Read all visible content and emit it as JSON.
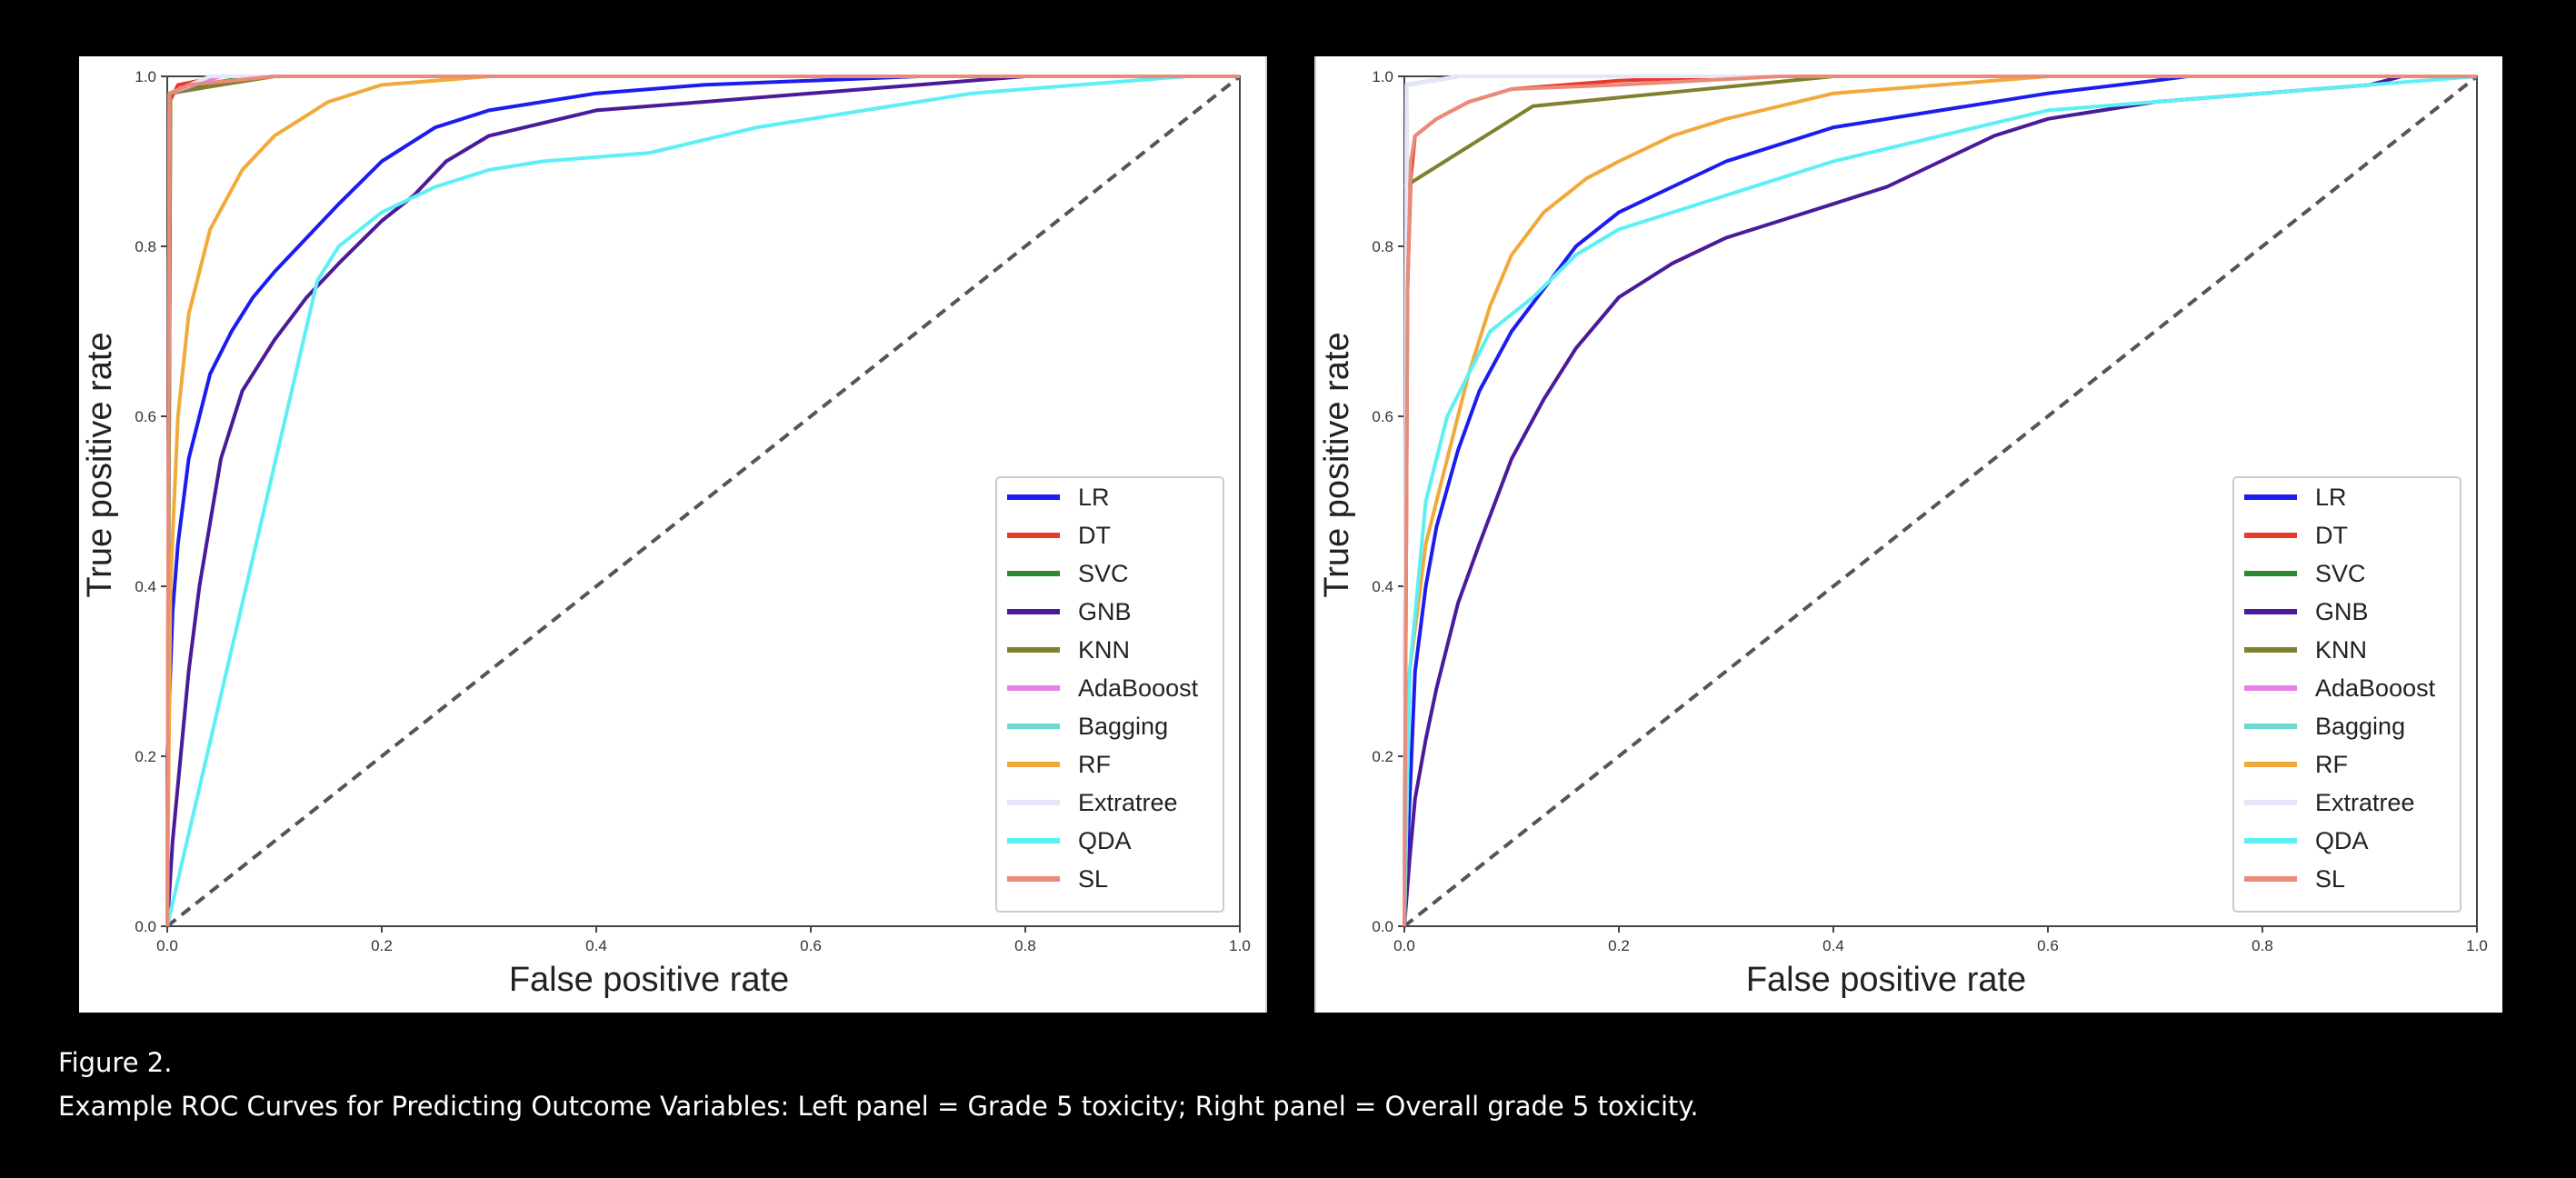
{
  "figure": {
    "label": "Figure 2.",
    "caption": "Example ROC Curves for Predicting Outcome Variables: Left panel = Grade 5 toxicity; Right panel = Overall grade 5 toxicity."
  },
  "chart_data": [
    {
      "type": "line",
      "xlabel": "False positive rate",
      "ylabel": "True positive rate",
      "xlim": [
        0,
        1
      ],
      "ylim": [
        0,
        1
      ],
      "xticks": [
        "0.0",
        "0.2",
        "0.4",
        "0.6",
        "0.8",
        "1.0"
      ],
      "yticks": [
        "0.0",
        "0.2",
        "0.4",
        "0.6",
        "0.8",
        "1.0"
      ],
      "grid": false,
      "legend_position": "bottom-right",
      "diagonal": {
        "style": "dashed",
        "color": "#555555",
        "points": [
          [
            0,
            0
          ],
          [
            1,
            1
          ]
        ]
      },
      "series": [
        {
          "name": "LR",
          "color": "#1c1cf0",
          "points": [
            [
              0,
              0
            ],
            [
              0,
              0.2
            ],
            [
              0.005,
              0.37
            ],
            [
              0.01,
              0.45
            ],
            [
              0.02,
              0.55
            ],
            [
              0.03,
              0.6
            ],
            [
              0.04,
              0.65
            ],
            [
              0.06,
              0.7
            ],
            [
              0.08,
              0.74
            ],
            [
              0.1,
              0.77
            ],
            [
              0.13,
              0.81
            ],
            [
              0.16,
              0.85
            ],
            [
              0.2,
              0.9
            ],
            [
              0.25,
              0.94
            ],
            [
              0.3,
              0.96
            ],
            [
              0.4,
              0.98
            ],
            [
              0.5,
              0.99
            ],
            [
              0.7,
              1.0
            ],
            [
              1,
              1
            ]
          ]
        },
        {
          "name": "DT",
          "color": "#e8392b",
          "points": [
            [
              0,
              0
            ],
            [
              0.002,
              0.97
            ],
            [
              0.01,
              0.99
            ],
            [
              0.05,
              1.0
            ],
            [
              1,
              1
            ]
          ]
        },
        {
          "name": "SVC",
          "color": "#2e8a2e",
          "points": [
            [
              0,
              0
            ],
            [
              0.003,
              0.98
            ],
            [
              0.03,
              0.99
            ],
            [
              0.08,
              1.0
            ],
            [
              1,
              1
            ]
          ]
        },
        {
          "name": "GNB",
          "color": "#4b1a9a",
          "points": [
            [
              0,
              0
            ],
            [
              0.005,
              0.1
            ],
            [
              0.02,
              0.3
            ],
            [
              0.03,
              0.4
            ],
            [
              0.05,
              0.55
            ],
            [
              0.07,
              0.63
            ],
            [
              0.1,
              0.69
            ],
            [
              0.13,
              0.74
            ],
            [
              0.16,
              0.78
            ],
            [
              0.2,
              0.83
            ],
            [
              0.23,
              0.86
            ],
            [
              0.26,
              0.9
            ],
            [
              0.3,
              0.93
            ],
            [
              0.4,
              0.96
            ],
            [
              0.5,
              0.97
            ],
            [
              0.6,
              0.98
            ],
            [
              0.7,
              0.99
            ],
            [
              0.8,
              1.0
            ],
            [
              1,
              1
            ]
          ]
        },
        {
          "name": "KNN",
          "color": "#808030",
          "points": [
            [
              0,
              0
            ],
            [
              0.003,
              0.98
            ],
            [
              0.05,
              0.99
            ],
            [
              0.1,
              1.0
            ],
            [
              1,
              1
            ]
          ]
        },
        {
          "name": "AdaBooost",
          "color": "#e680e8",
          "points": [
            [
              0,
              0
            ],
            [
              0.002,
              0.98
            ],
            [
              0.05,
              1.0
            ],
            [
              1,
              1
            ]
          ]
        },
        {
          "name": "Bagging",
          "color": "#6ad9d0",
          "points": [
            [
              0,
              0
            ],
            [
              0.002,
              0.98
            ],
            [
              0.04,
              1.0
            ],
            [
              1,
              1
            ]
          ]
        },
        {
          "name": "RF",
          "color": "#f2a93b",
          "points": [
            [
              0,
              0
            ],
            [
              0.003,
              0.4
            ],
            [
              0.01,
              0.6
            ],
            [
              0.02,
              0.72
            ],
            [
              0.04,
              0.82
            ],
            [
              0.07,
              0.89
            ],
            [
              0.1,
              0.93
            ],
            [
              0.15,
              0.97
            ],
            [
              0.2,
              0.99
            ],
            [
              0.3,
              1.0
            ],
            [
              1,
              1
            ]
          ]
        },
        {
          "name": "Extratree",
          "color": "#e6e6fa",
          "points": [
            [
              0,
              0
            ],
            [
              0.002,
              0.98
            ],
            [
              0.04,
              1.0
            ],
            [
              1,
              1
            ]
          ]
        },
        {
          "name": "QDA",
          "color": "#5cf0f4",
          "points": [
            [
              0,
              0
            ],
            [
              0.14,
              0.76
            ],
            [
              0.16,
              0.8
            ],
            [
              0.2,
              0.84
            ],
            [
              0.25,
              0.87
            ],
            [
              0.3,
              0.89
            ],
            [
              0.35,
              0.9
            ],
            [
              0.45,
              0.91
            ],
            [
              0.55,
              0.94
            ],
            [
              0.65,
              0.96
            ],
            [
              0.75,
              0.98
            ],
            [
              0.85,
              0.99
            ],
            [
              0.95,
              1.0
            ],
            [
              1,
              1
            ]
          ]
        },
        {
          "name": "SL",
          "color": "#ea8a78",
          "points": [
            [
              0,
              0
            ],
            [
              0.002,
              0.98
            ],
            [
              0.02,
              0.99
            ],
            [
              0.1,
              1.0
            ],
            [
              1,
              1
            ]
          ]
        }
      ]
    },
    {
      "type": "line",
      "xlabel": "False positive rate",
      "ylabel": "True positive rate",
      "xlim": [
        0,
        1
      ],
      "ylim": [
        0,
        1
      ],
      "xticks": [
        "0.0",
        "0.2",
        "0.4",
        "0.6",
        "0.8",
        "1.0"
      ],
      "yticks": [
        "0.0",
        "0.2",
        "0.4",
        "0.6",
        "0.8",
        "1.0"
      ],
      "grid": false,
      "legend_position": "bottom-right",
      "diagonal": {
        "style": "dashed",
        "color": "#555555",
        "points": [
          [
            0,
            0
          ],
          [
            1,
            1
          ]
        ]
      },
      "series": [
        {
          "name": "LR",
          "color": "#1c1cf0",
          "points": [
            [
              0,
              0
            ],
            [
              0.005,
              0.15
            ],
            [
              0.01,
              0.3
            ],
            [
              0.02,
              0.4
            ],
            [
              0.03,
              0.47
            ],
            [
              0.05,
              0.56
            ],
            [
              0.07,
              0.63
            ],
            [
              0.1,
              0.7
            ],
            [
              0.13,
              0.75
            ],
            [
              0.16,
              0.8
            ],
            [
              0.2,
              0.84
            ],
            [
              0.25,
              0.87
            ],
            [
              0.3,
              0.9
            ],
            [
              0.4,
              0.94
            ],
            [
              0.5,
              0.96
            ],
            [
              0.6,
              0.98
            ],
            [
              0.7,
              0.995
            ],
            [
              0.73,
              1.0
            ],
            [
              1,
              1
            ]
          ]
        },
        {
          "name": "DT",
          "color": "#e8392b",
          "points": [
            [
              0,
              0
            ],
            [
              0.003,
              0.75
            ],
            [
              0.006,
              0.88
            ],
            [
              0.01,
              0.93
            ],
            [
              0.03,
              0.95
            ],
            [
              0.06,
              0.97
            ],
            [
              0.1,
              0.985
            ],
            [
              0.2,
              0.995
            ],
            [
              0.3,
              1.0
            ],
            [
              1,
              1
            ]
          ]
        },
        {
          "name": "SVC",
          "color": "#2e8a2e",
          "points": [
            [
              0,
              0
            ],
            [
              0.002,
              0.99
            ],
            [
              0.05,
              1.0
            ],
            [
              1,
              1
            ]
          ]
        },
        {
          "name": "GNB",
          "color": "#4b1a9a",
          "points": [
            [
              0,
              0
            ],
            [
              0.005,
              0.08
            ],
            [
              0.01,
              0.15
            ],
            [
              0.02,
              0.22
            ],
            [
              0.03,
              0.28
            ],
            [
              0.05,
              0.38
            ],
            [
              0.07,
              0.45
            ],
            [
              0.1,
              0.55
            ],
            [
              0.13,
              0.62
            ],
            [
              0.16,
              0.68
            ],
            [
              0.2,
              0.74
            ],
            [
              0.25,
              0.78
            ],
            [
              0.3,
              0.81
            ],
            [
              0.35,
              0.83
            ],
            [
              0.4,
              0.85
            ],
            [
              0.45,
              0.87
            ],
            [
              0.5,
              0.9
            ],
            [
              0.55,
              0.93
            ],
            [
              0.6,
              0.95
            ],
            [
              0.7,
              0.97
            ],
            [
              0.8,
              0.98
            ],
            [
              0.9,
              0.99
            ],
            [
              0.93,
              1.0
            ],
            [
              1,
              1
            ]
          ]
        },
        {
          "name": "KNN",
          "color": "#808030",
          "points": [
            [
              0,
              0.87
            ],
            [
              0.12,
              0.965
            ],
            [
              0.4,
              1.0
            ],
            [
              1,
              1
            ]
          ]
        },
        {
          "name": "AdaBooost",
          "color": "#e680e8",
          "points": [
            [
              0,
              0
            ],
            [
              0.002,
              0.99
            ],
            [
              0.05,
              1.0
            ],
            [
              1,
              1
            ]
          ]
        },
        {
          "name": "Bagging",
          "color": "#6ad9d0",
          "points": [
            [
              0,
              0
            ],
            [
              0.002,
              0.99
            ],
            [
              0.05,
              1.0
            ],
            [
              1,
              1
            ]
          ]
        },
        {
          "name": "RF",
          "color": "#f2a93b",
          "points": [
            [
              0,
              0
            ],
            [
              0.005,
              0.3
            ],
            [
              0.02,
              0.45
            ],
            [
              0.04,
              0.55
            ],
            [
              0.06,
              0.65
            ],
            [
              0.08,
              0.73
            ],
            [
              0.1,
              0.79
            ],
            [
              0.13,
              0.84
            ],
            [
              0.17,
              0.88
            ],
            [
              0.2,
              0.9
            ],
            [
              0.25,
              0.93
            ],
            [
              0.3,
              0.95
            ],
            [
              0.4,
              0.98
            ],
            [
              0.5,
              0.99
            ],
            [
              0.6,
              1.0
            ],
            [
              1,
              1
            ]
          ]
        },
        {
          "name": "Extratree",
          "color": "#e6e6fa",
          "points": [
            [
              0,
              0
            ],
            [
              0.002,
              0.99
            ],
            [
              0.05,
              1.0
            ],
            [
              1,
              1
            ]
          ]
        },
        {
          "name": "QDA",
          "color": "#5cf0f4",
          "points": [
            [
              0,
              0
            ],
            [
              0.005,
              0.3
            ],
            [
              0.02,
              0.5
            ],
            [
              0.04,
              0.6
            ],
            [
              0.06,
              0.65
            ],
            [
              0.08,
              0.7
            ],
            [
              0.12,
              0.74
            ],
            [
              0.16,
              0.79
            ],
            [
              0.2,
              0.82
            ],
            [
              0.25,
              0.84
            ],
            [
              0.3,
              0.86
            ],
            [
              0.35,
              0.88
            ],
            [
              0.4,
              0.9
            ],
            [
              0.5,
              0.93
            ],
            [
              0.6,
              0.96
            ],
            [
              0.7,
              0.97
            ],
            [
              0.8,
              0.98
            ],
            [
              0.9,
              0.99
            ],
            [
              1,
              1
            ]
          ]
        },
        {
          "name": "SL",
          "color": "#ea8a78",
          "points": [
            [
              0,
              0
            ],
            [
              0.003,
              0.75
            ],
            [
              0.006,
              0.9
            ],
            [
              0.01,
              0.93
            ],
            [
              0.03,
              0.95
            ],
            [
              0.06,
              0.97
            ],
            [
              0.1,
              0.985
            ],
            [
              0.2,
              0.99
            ],
            [
              0.35,
              1.0
            ],
            [
              1,
              1
            ]
          ]
        }
      ]
    }
  ]
}
